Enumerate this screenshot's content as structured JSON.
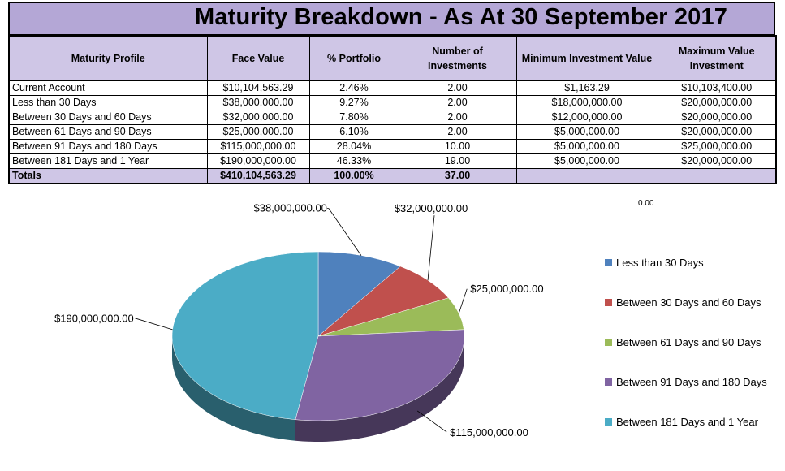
{
  "title": "Maturity Breakdown - As At 30 September 2017",
  "table": {
    "headers": [
      "Maturity Profile",
      "Face Value",
      "% Portfolio",
      "Number of Investments",
      "Minimum Investment Value",
      "Maximum Value Investment"
    ],
    "rows": [
      [
        "Current Account",
        "$10,104,563.29",
        "2.46%",
        "2.00",
        "$1,163.29",
        "$10,103,400.00"
      ],
      [
        "Less than 30 Days",
        "$38,000,000.00",
        "9.27%",
        "2.00",
        "$18,000,000.00",
        "$20,000,000.00"
      ],
      [
        "Between 30 Days and 60 Days",
        "$32,000,000.00",
        "7.80%",
        "2.00",
        "$12,000,000.00",
        "$20,000,000.00"
      ],
      [
        "Between 61 Days and 90 Days",
        "$25,000,000.00",
        "6.10%",
        "2.00",
        "$5,000,000.00",
        "$20,000,000.00"
      ],
      [
        "Between 91 Days and 180 Days",
        "$115,000,000.00",
        "28.04%",
        "10.00",
        "$5,000,000.00",
        "$25,000,000.00"
      ],
      [
        "Between 181 Days and 1 Year",
        "$190,000,000.00",
        "46.33%",
        "19.00",
        "$5,000,000.00",
        "$20,000,000.00"
      ]
    ],
    "totals": [
      "Totals",
      "$410,104,563.29",
      "100.00%",
      "37.00",
      "",
      ""
    ]
  },
  "stray_label": "0.00",
  "chart_data": {
    "type": "pie",
    "categories": [
      "Less than 30 Days",
      "Between 30 Days and 60 Days",
      "Between 61 Days and 90 Days",
      "Between 91 Days and 180 Days",
      "Between 181 Days and 1 Year"
    ],
    "values": [
      38000000,
      32000000,
      25000000,
      115000000,
      190000000
    ],
    "data_labels": [
      "$38,000,000.00",
      "$32,000,000.00",
      "$25,000,000.00",
      "$115,000,000.00",
      "$190,000,000.00"
    ],
    "colors": [
      "#4f81bd",
      "#c0504d",
      "#9bbb59",
      "#8064a2",
      "#4bacc6"
    ],
    "style": "3d",
    "legend": "right"
  }
}
